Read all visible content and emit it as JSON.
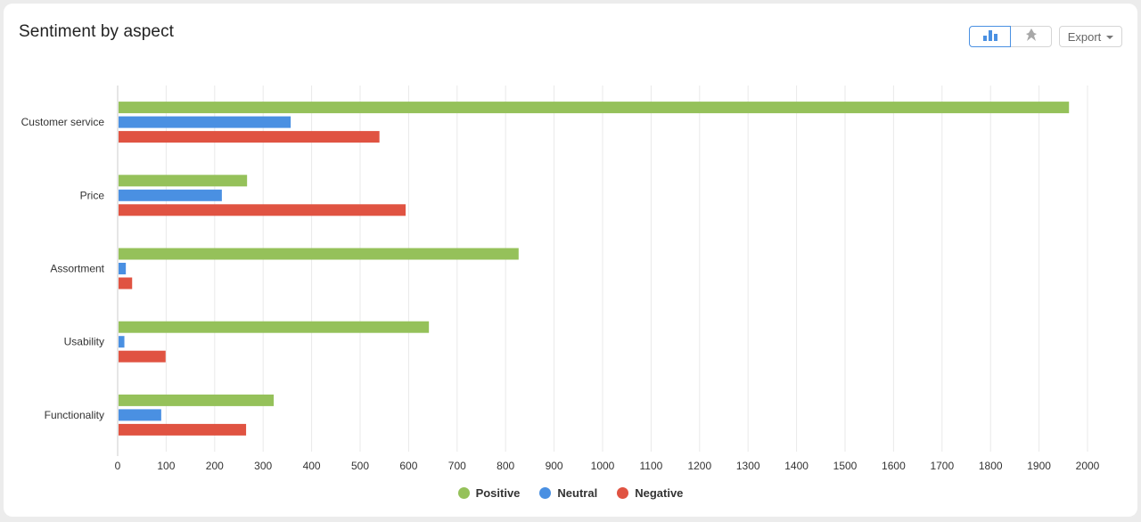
{
  "header": {
    "title": "Sentiment by aspect",
    "export_label": "Export",
    "view_toggle": [
      {
        "icon": "bar-chart-icon",
        "active": true
      },
      {
        "icon": "pin-icon",
        "active": false
      }
    ]
  },
  "colors": {
    "positive": "#95c15a",
    "neutral": "#4a90e2",
    "negative": "#e05342",
    "grid": "#e9e9e9",
    "axis_text": "#333333"
  },
  "chart_data": {
    "type": "bar",
    "orientation": "horizontal",
    "title": "Sentiment by aspect",
    "categories": [
      "Customer service",
      "Price",
      "Assortment",
      "Usability",
      "Functionality"
    ],
    "series": [
      {
        "name": "Positive",
        "values": [
          1960,
          265,
          825,
          640,
          320
        ]
      },
      {
        "name": "Neutral",
        "values": [
          355,
          213,
          15,
          12,
          88
        ]
      },
      {
        "name": "Negative",
        "values": [
          538,
          592,
          28,
          97,
          263
        ]
      }
    ],
    "xlim": [
      0,
      2000
    ],
    "xticks": [
      "0",
      "100",
      "200",
      "300",
      "400",
      "500",
      "600",
      "700",
      "800",
      "900",
      "1000",
      "1100",
      "1200",
      "1300",
      "1400",
      "1500",
      "1600",
      "1700",
      "1800",
      "1900",
      "2000"
    ],
    "grid": true,
    "legend_position": "bottom-center"
  }
}
